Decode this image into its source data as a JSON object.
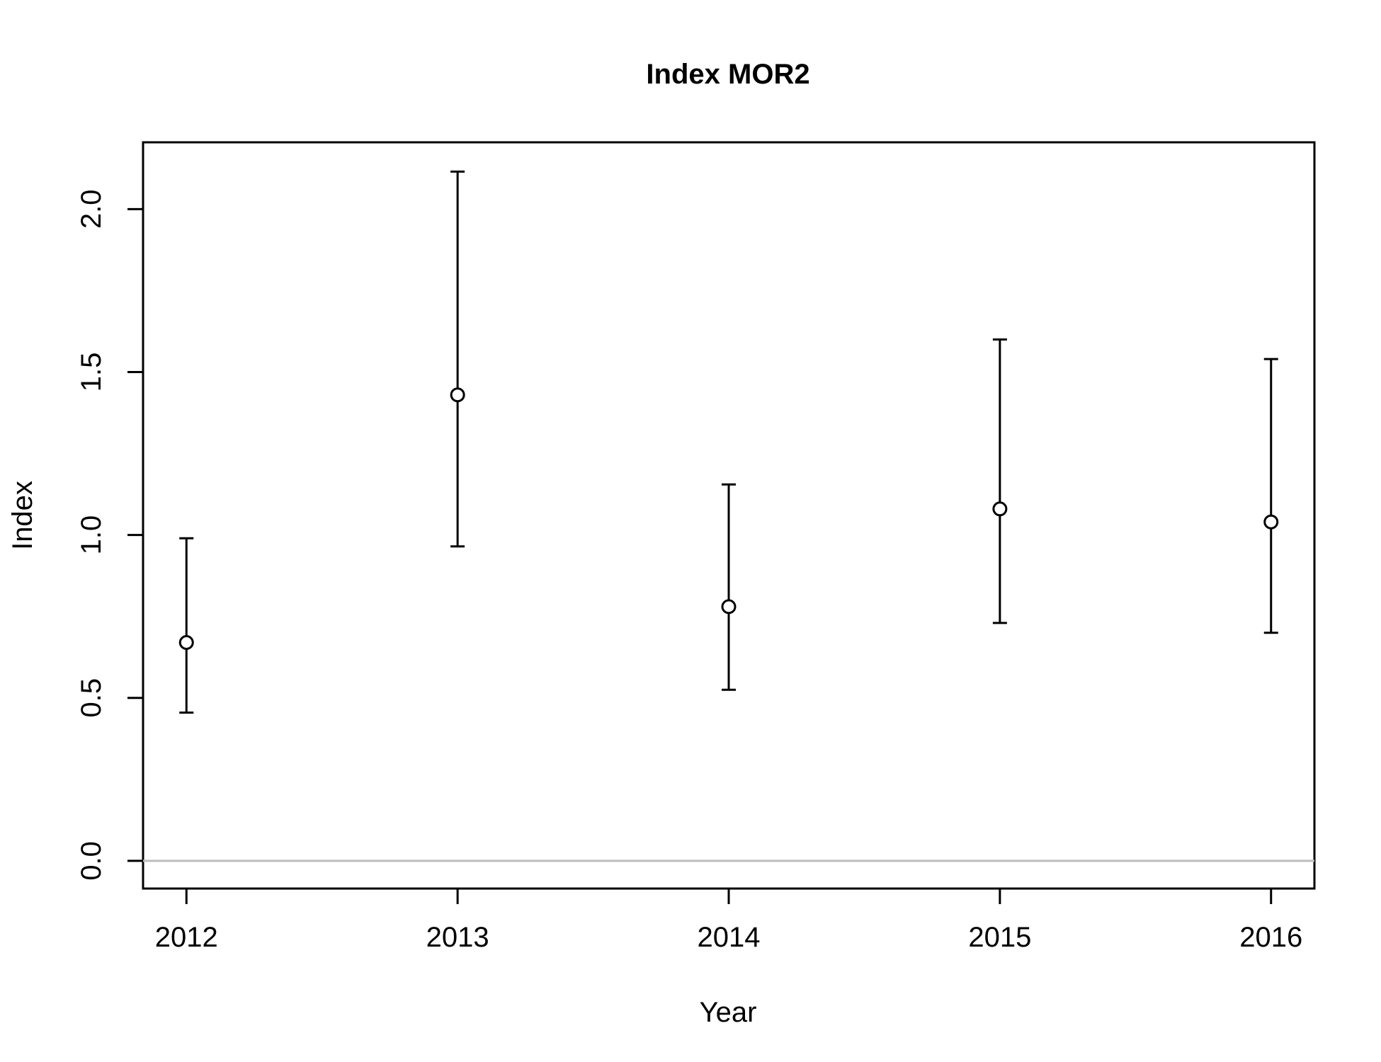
{
  "chart_data": {
    "type": "scatter",
    "title": "Index MOR2",
    "xlabel": "Year",
    "ylabel": "Index",
    "x": [
      2012,
      2013,
      2014,
      2015,
      2016
    ],
    "series": [
      {
        "values": [
          0.67,
          1.43,
          0.78,
          1.08,
          1.04
        ],
        "lower": [
          0.455,
          0.965,
          0.525,
          0.73,
          0.7
        ],
        "upper": [
          0.99,
          2.115,
          1.155,
          1.6,
          1.54
        ]
      }
    ],
    "xlim": [
      2011.84,
      2016.16
    ],
    "ylim": [
      -0.085,
      2.205
    ],
    "x_ticks": [
      "2012",
      "2013",
      "2014",
      "2015",
      "2016"
    ],
    "y_ticks": [
      "0.0",
      "0.5",
      "1.0",
      "1.5",
      "2.0"
    ],
    "reference_line": {
      "y": 0,
      "color": "#bebebe"
    },
    "grid": false,
    "legend": "none",
    "colors": {
      "points": "#000000",
      "reference": "#bebebe",
      "axis": "#000000"
    }
  }
}
